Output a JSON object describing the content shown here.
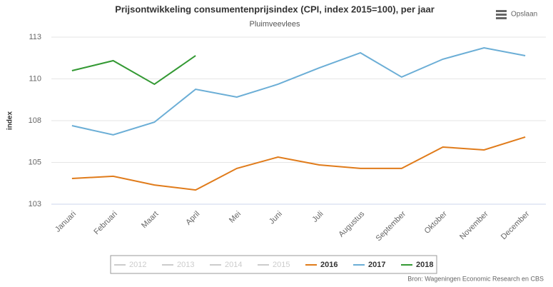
{
  "menu": {
    "label": "Opslaan"
  },
  "chart_data": {
    "type": "line",
    "title": "Prijsontwikkeling consumentenprijsindex (CPI, index 2015=100), per jaar",
    "subtitle": "Pluimveevlees",
    "ylabel": "index",
    "source": "Bron: Wageningen Economic Research en CBS",
    "categories": [
      "Januari",
      "Februari",
      "Maart",
      "April",
      "Mei",
      "Juni",
      "Juli",
      "Augustus",
      "September",
      "Oktober",
      "November",
      "December"
    ],
    "ylim": [
      102.5,
      112.5
    ],
    "yticks": [
      {
        "value": 102.5,
        "label": "103"
      },
      {
        "value": 105,
        "label": "105"
      },
      {
        "value": 107.5,
        "label": "108"
      },
      {
        "value": 110,
        "label": "110"
      },
      {
        "value": 112.5,
        "label": "113"
      }
    ],
    "grid": true,
    "legend": "bottom",
    "series": [
      {
        "name": "2012",
        "color": "#cccccc",
        "visible": false,
        "values": [
          null,
          null,
          null,
          null,
          null,
          null,
          null,
          null,
          null,
          null,
          null,
          null
        ]
      },
      {
        "name": "2013",
        "color": "#cccccc",
        "visible": false,
        "values": [
          null,
          null,
          null,
          null,
          null,
          null,
          null,
          null,
          null,
          null,
          null,
          null
        ]
      },
      {
        "name": "2014",
        "color": "#cccccc",
        "visible": false,
        "values": [
          null,
          null,
          null,
          null,
          null,
          null,
          null,
          null,
          null,
          null,
          null,
          null
        ]
      },
      {
        "name": "2015",
        "color": "#cccccc",
        "visible": false,
        "values": [
          null,
          null,
          null,
          null,
          null,
          null,
          null,
          null,
          null,
          null,
          null,
          null
        ]
      },
      {
        "name": "2016",
        "color": "#e07b1a",
        "visible": true,
        "values": [
          104.04,
          104.17,
          103.65,
          103.35,
          104.64,
          105.32,
          104.85,
          104.64,
          104.64,
          105.92,
          105.75,
          106.52
        ]
      },
      {
        "name": "2017",
        "color": "#6baed6",
        "visible": true,
        "values": [
          107.2,
          106.65,
          107.41,
          109.38,
          108.91,
          109.68,
          110.66,
          111.56,
          110.11,
          111.18,
          111.86,
          111.39
        ]
      },
      {
        "name": "2018",
        "color": "#339933",
        "visible": true,
        "values": [
          110.49,
          111.09,
          109.68,
          111.39,
          null,
          null,
          null,
          null,
          null,
          null,
          null,
          null
        ]
      }
    ]
  }
}
